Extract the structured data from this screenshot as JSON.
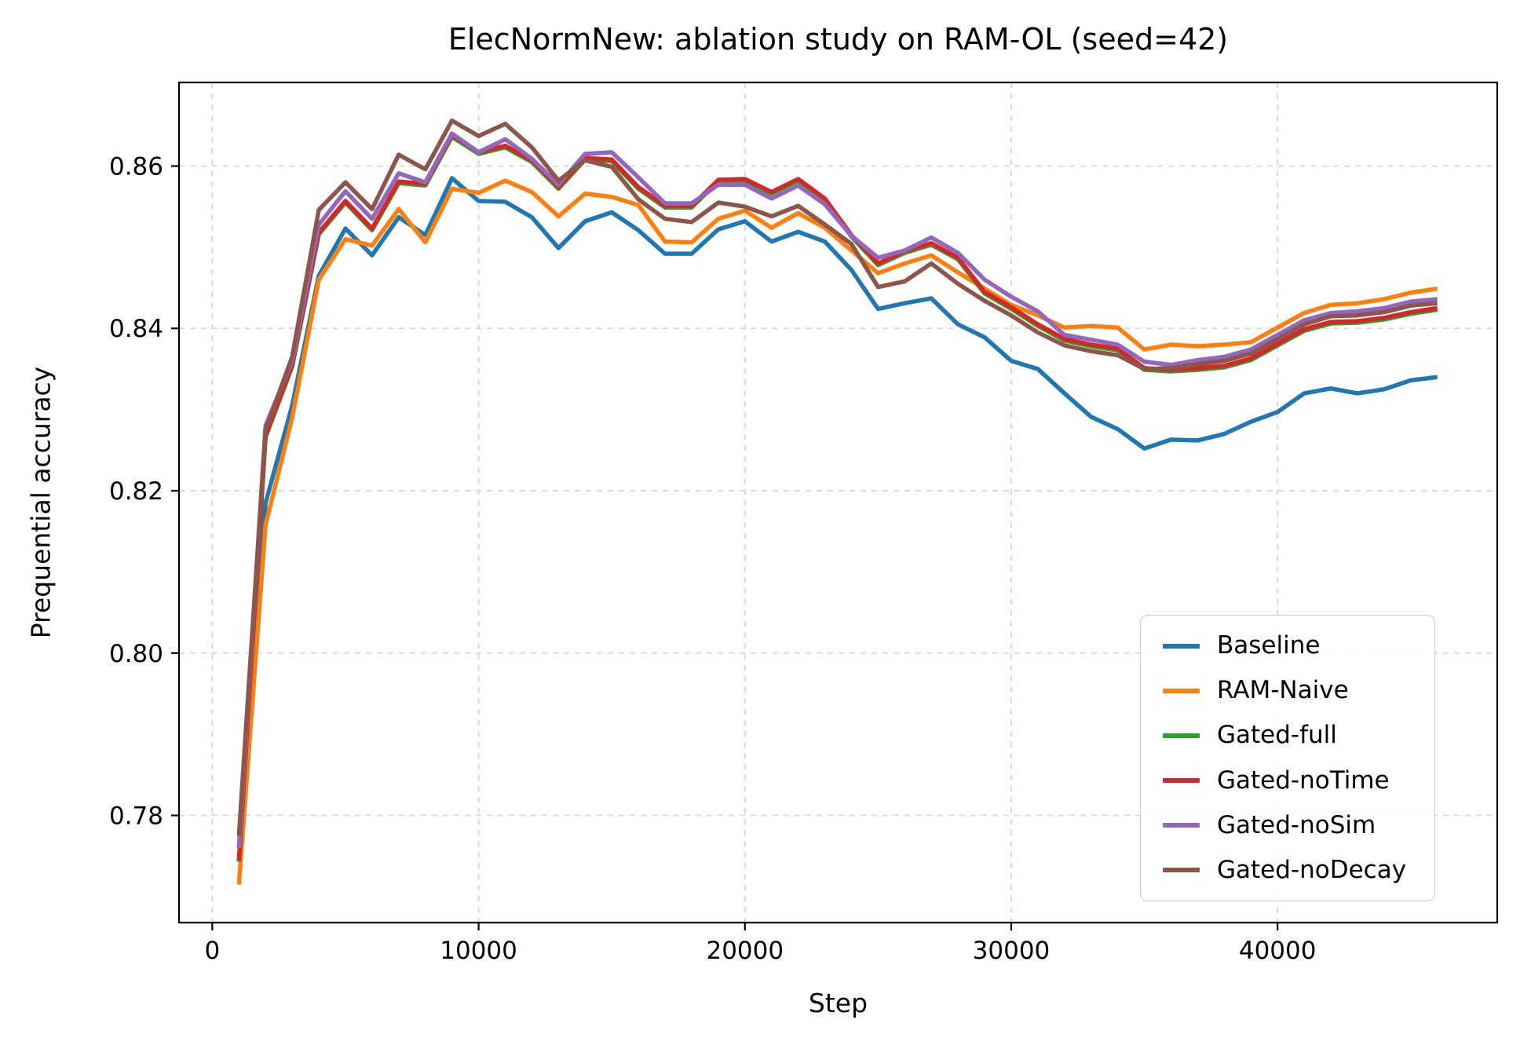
{
  "figure": {
    "title": "ElecNormNew: ablation study on RAM-OL (seed=42)",
    "xlabel": "Step",
    "ylabel": "Prequential accuracy"
  },
  "chart_data": {
    "type": "line",
    "title": "ElecNormNew: ablation study on RAM-OL (seed=42)",
    "xlabel": "Step",
    "ylabel": "Prequential accuracy",
    "grid": "dashed",
    "grid_color": "#d6d6d6",
    "legend_position": "lower right",
    "xlim": [
      -1250,
      48250
    ],
    "ylim": [
      0.7668,
      0.8703
    ],
    "x_ticks": [
      0,
      10000,
      20000,
      30000,
      40000
    ],
    "x_tick_labels": [
      "0",
      "10000",
      "20000",
      "30000",
      "40000"
    ],
    "y_ticks": [
      0.78,
      0.8,
      0.82,
      0.84,
      0.86
    ],
    "y_tick_labels": [
      "0.78",
      "0.80",
      "0.82",
      "0.84",
      "0.86"
    ],
    "x": [
      1000,
      2000,
      3000,
      4000,
      5000,
      6000,
      7000,
      8000,
      9000,
      10000,
      11000,
      12000,
      13000,
      14000,
      15000,
      16000,
      17000,
      18000,
      19000,
      20000,
      21000,
      22000,
      23000,
      24000,
      25000,
      26000,
      27000,
      28000,
      29000,
      30000,
      31000,
      32000,
      33000,
      34000,
      35000,
      36000,
      37000,
      38000,
      39000,
      40000,
      41000,
      42000,
      43000,
      44000,
      45000,
      46000
    ],
    "series": [
      {
        "name": "Baseline",
        "color": "#1f77b4",
        "values": [
          0.776,
          0.8185,
          0.8305,
          0.8465,
          0.8523,
          0.849,
          0.8537,
          0.8515,
          0.8585,
          0.8557,
          0.8556,
          0.8537,
          0.8499,
          0.8532,
          0.8543,
          0.8521,
          0.8492,
          0.8492,
          0.8522,
          0.8532,
          0.8507,
          0.8519,
          0.8507,
          0.8472,
          0.8424,
          0.8431,
          0.8437,
          0.8405,
          0.8389,
          0.836,
          0.835,
          0.832,
          0.8291,
          0.8276,
          0.8252,
          0.8263,
          0.8262,
          0.827,
          0.8285,
          0.8297,
          0.832,
          0.8326,
          0.832,
          0.8325,
          0.8336,
          0.834
        ]
      },
      {
        "name": "RAM-Naive",
        "color": "#ff7f0e",
        "values": [
          0.7715,
          0.8158,
          0.829,
          0.846,
          0.851,
          0.8502,
          0.8547,
          0.8506,
          0.8572,
          0.8567,
          0.8582,
          0.8568,
          0.8538,
          0.8566,
          0.8562,
          0.8552,
          0.8507,
          0.8506,
          0.8535,
          0.8545,
          0.8524,
          0.8542,
          0.8524,
          0.8496,
          0.8468,
          0.848,
          0.849,
          0.8469,
          0.8449,
          0.8429,
          0.8416,
          0.8401,
          0.8403,
          0.8401,
          0.8374,
          0.838,
          0.8378,
          0.838,
          0.8383,
          0.8401,
          0.8419,
          0.8429,
          0.8431,
          0.8436,
          0.8444,
          0.8449
        ]
      },
      {
        "name": "Gated-full",
        "color": "#2ca02c",
        "values": [
          0.7743,
          0.8266,
          0.8353,
          0.8516,
          0.8555,
          0.8521,
          0.8579,
          0.8576,
          0.8636,
          0.8615,
          0.8623,
          0.8605,
          0.8572,
          0.8608,
          0.8606,
          0.8572,
          0.8549,
          0.8549,
          0.8581,
          0.8582,
          0.8566,
          0.8582,
          0.8558,
          0.8513,
          0.8478,
          0.8493,
          0.8503,
          0.8485,
          0.8443,
          0.8424,
          0.8403,
          0.8385,
          0.8378,
          0.8373,
          0.8349,
          0.8347,
          0.8349,
          0.8352,
          0.8361,
          0.8379,
          0.8397,
          0.8406,
          0.8407,
          0.8411,
          0.8418,
          0.8423
        ]
      },
      {
        "name": "Gated-noTime",
        "color": "#d62728",
        "values": [
          0.7745,
          0.8268,
          0.8355,
          0.8518,
          0.8557,
          0.8523,
          0.8581,
          0.8578,
          0.8638,
          0.8617,
          0.8625,
          0.8607,
          0.8574,
          0.861,
          0.8608,
          0.8574,
          0.8551,
          0.8551,
          0.8583,
          0.8584,
          0.8568,
          0.8584,
          0.856,
          0.8515,
          0.848,
          0.8495,
          0.8505,
          0.8487,
          0.8445,
          0.8426,
          0.8405,
          0.8387,
          0.838,
          0.8375,
          0.8351,
          0.8349,
          0.8351,
          0.8354,
          0.8363,
          0.8381,
          0.8399,
          0.8408,
          0.8409,
          0.8413,
          0.842,
          0.8425
        ]
      },
      {
        "name": "Gated-noSim",
        "color": "#9467bd",
        "values": [
          0.776,
          0.828,
          0.836,
          0.8528,
          0.8569,
          0.8535,
          0.8591,
          0.858,
          0.864,
          0.8617,
          0.8633,
          0.8609,
          0.8577,
          0.8615,
          0.8617,
          0.8586,
          0.8554,
          0.8554,
          0.8577,
          0.8577,
          0.856,
          0.8576,
          0.8553,
          0.8514,
          0.8487,
          0.8496,
          0.8512,
          0.8493,
          0.846,
          0.8439,
          0.8421,
          0.8392,
          0.8386,
          0.838,
          0.8359,
          0.8355,
          0.8361,
          0.8365,
          0.8374,
          0.8392,
          0.841,
          0.8419,
          0.8421,
          0.8425,
          0.8433,
          0.8436
        ]
      },
      {
        "name": "Gated-noDecay",
        "color": "#8c564b",
        "values": [
          0.7775,
          0.8275,
          0.8365,
          0.8546,
          0.858,
          0.8547,
          0.8614,
          0.8596,
          0.8656,
          0.8637,
          0.8652,
          0.8623,
          0.8582,
          0.8607,
          0.8599,
          0.8559,
          0.8535,
          0.8531,
          0.8555,
          0.855,
          0.8538,
          0.8551,
          0.8528,
          0.8504,
          0.8451,
          0.8458,
          0.848,
          0.8455,
          0.8434,
          0.8416,
          0.8395,
          0.8379,
          0.8372,
          0.8367,
          0.835,
          0.8351,
          0.8356,
          0.836,
          0.8369,
          0.8387,
          0.8405,
          0.8415,
          0.8416,
          0.842,
          0.8428,
          0.8431
        ]
      }
    ]
  }
}
